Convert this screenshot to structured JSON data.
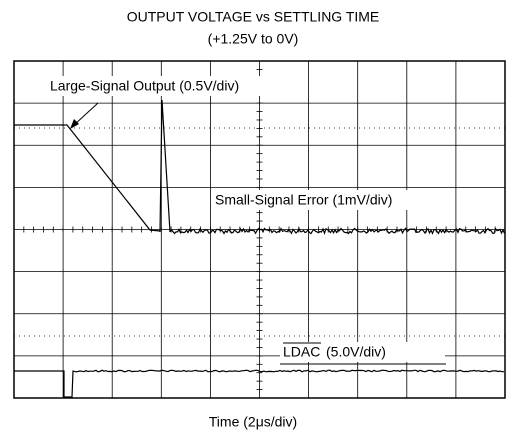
{
  "chart_data": {
    "type": "scope",
    "title": "OUTPUT VOLTAGE vs SETTLING TIME",
    "subtitle": "(+1.25V to 0V)",
    "x_label": "Time (2μs/div)",
    "annotations": {
      "large_signal": "Large-Signal Output (0.5V/div)",
      "small_signal": "Small-Signal Error (1mV/div)",
      "ldac_signal": "LDAC",
      "ldac_scale": "(5.0V/div)"
    }
  }
}
